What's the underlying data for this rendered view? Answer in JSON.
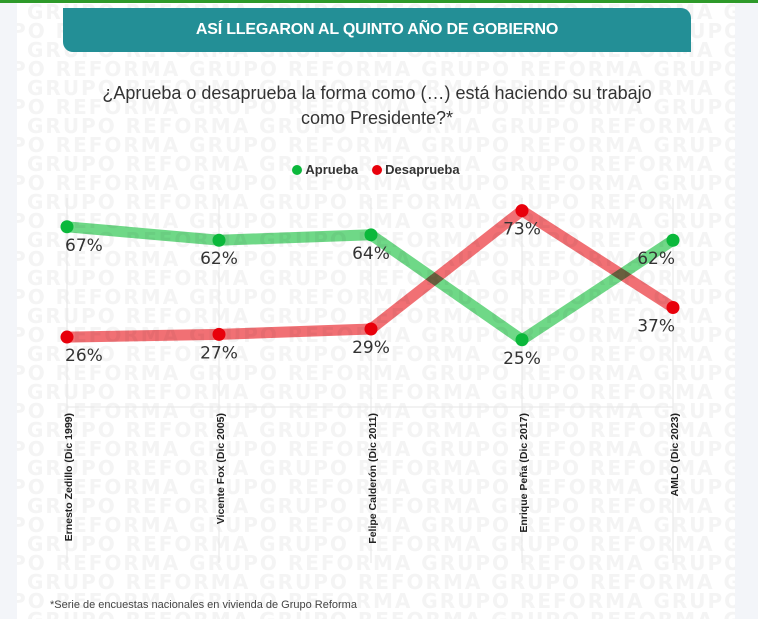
{
  "header": {
    "title": "ASÍ LLEGARON AL QUINTO AÑO DE GOBIERNO"
  },
  "colors": {
    "accent": "#238f96",
    "top_bar": "#2e9a2a",
    "aprueba": "#0bb83b",
    "aprueba_line": "#5fd47a",
    "desaprueba": "#e8000b",
    "desaprueba_line": "#ef6065"
  },
  "watermark": {
    "text": "GRUPO REFORMA"
  },
  "footnote": "*Serie de encuestas nacionales en vivienda de Grupo Reforma",
  "chart_data": {
    "type": "line",
    "title": "¿Aprueba o desaprueba la forma como (…) está haciendo su trabajo como Presidente?*",
    "categories": [
      "Ernesto Zedillo (Dic 1999)",
      "Vicente Fox (Dic 2005)",
      "Felipe Calderón (Dic 2011)",
      "Enrique Peña (Dic 2017)",
      "AMLO (Dic 2023)"
    ],
    "series": [
      {
        "name": "Aprueba",
        "values": [
          67,
          62,
          64,
          25,
          62
        ],
        "labels": [
          "67%",
          "62%",
          "64%",
          "25%",
          "62%"
        ]
      },
      {
        "name": "Desaprueba",
        "values": [
          26,
          27,
          29,
          73,
          37
        ],
        "labels": [
          "26%",
          "27%",
          "29%",
          "73%",
          "37%"
        ]
      }
    ],
    "xlabel": "",
    "ylabel": "",
    "ylim": [
      0,
      100
    ],
    "grid": "vertical",
    "legend": "top-center"
  }
}
